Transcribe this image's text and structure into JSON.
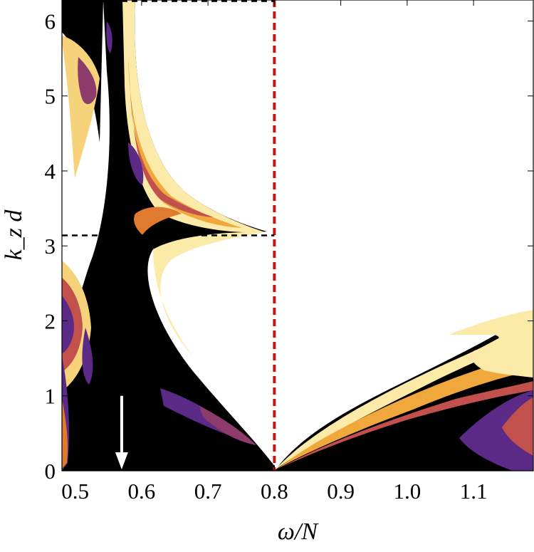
{
  "chart_data": {
    "type": "heatmap",
    "xlabel": "ω/N",
    "ylabel": "k_z d",
    "xlim": [
      0.48,
      1.19
    ],
    "ylim": [
      0,
      6.28
    ],
    "x_ticks": [
      {
        "value": 0.5,
        "label": "0.5"
      },
      {
        "value": 0.6,
        "label": "0.6"
      },
      {
        "value": 0.7,
        "label": "0.7"
      },
      {
        "value": 0.8,
        "label": "0.8"
      },
      {
        "value": 0.9,
        "label": "0.9"
      },
      {
        "value": 1.0,
        "label": "1.0"
      },
      {
        "value": 1.1,
        "label": "1.1"
      }
    ],
    "y_ticks": [
      {
        "value": 0,
        "label": "0"
      },
      {
        "value": 1,
        "label": "1"
      },
      {
        "value": 2,
        "label": "2"
      },
      {
        "value": 3,
        "label": "3"
      },
      {
        "value": 4,
        "label": "4"
      },
      {
        "value": 5,
        "label": "5"
      },
      {
        "value": 6,
        "label": "6"
      }
    ],
    "reference_lines": [
      {
        "orientation": "vertical",
        "value": 0.8,
        "style": "dashed",
        "color": "#cc1111"
      },
      {
        "orientation": "horizontal",
        "value": 3.14,
        "x_range": [
          0.48,
          0.8
        ],
        "style": "dashed",
        "color": "#000000"
      },
      {
        "orientation": "horizontal",
        "value": 6.28,
        "x_range": [
          0.48,
          0.8
        ],
        "style": "dashed",
        "color": "#000000"
      }
    ],
    "annotation_arrow": {
      "x": 0.57,
      "y_from": 1.0,
      "y_to": 0.0,
      "color": "#ffffff"
    },
    "grid": false,
    "colors": {
      "background": "#000000",
      "level_1": "#5b2a86",
      "level_2": "#8c3b6b",
      "level_3": "#c2504d",
      "level_4": "#e07a2e",
      "level_5": "#f0a83c",
      "level_6": "#f6d27a",
      "level_7": "#fbeaa8",
      "outside": "#ffffff"
    }
  }
}
